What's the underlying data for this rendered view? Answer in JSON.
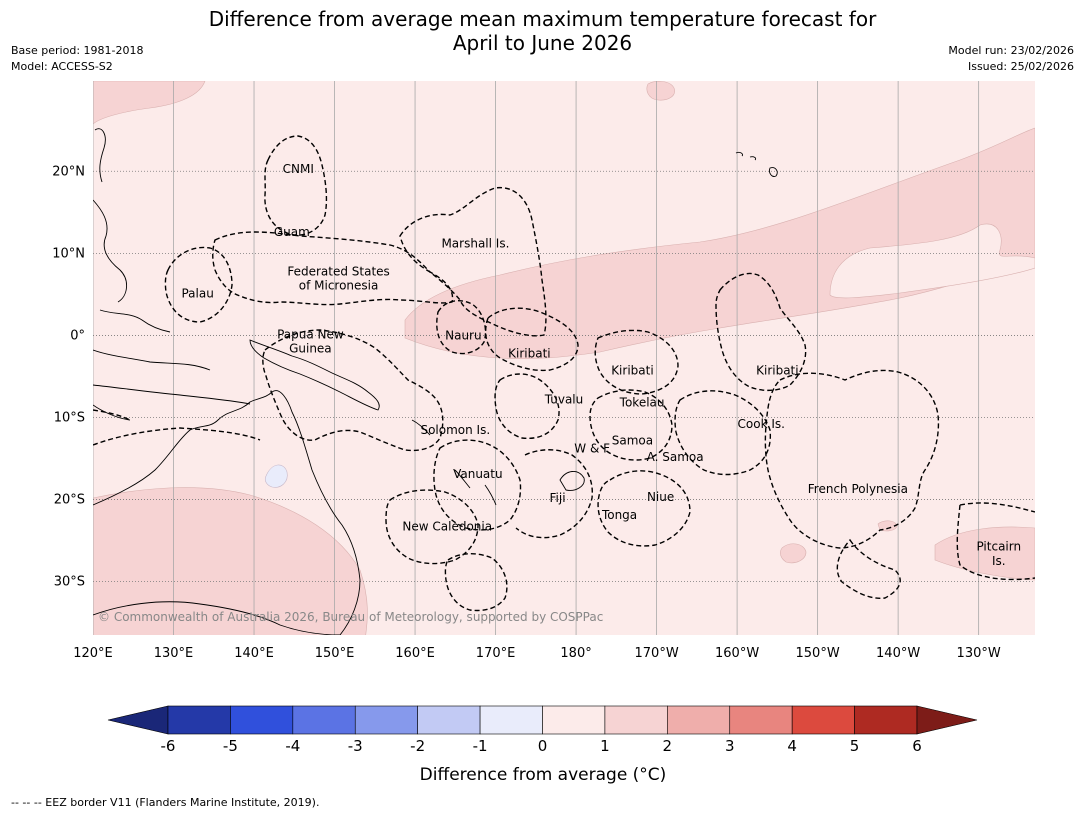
{
  "title": {
    "line1": "Difference from average mean maximum temperature forecast for",
    "line2": "April to June 2026"
  },
  "meta": {
    "base_period": "Base period: 1981-2018",
    "model": "Model: ACCESS-S2",
    "model_run": "Model run: 23/02/2026",
    "issued": "Issued: 25/02/2026"
  },
  "map": {
    "extent": {
      "lon_min": 120,
      "lon_max": 237,
      "lat_min": -36.5,
      "lat_max": 31
    },
    "lon_ticks": [
      {
        "lon": 120,
        "label": "120°E"
      },
      {
        "lon": 130,
        "label": "130°E"
      },
      {
        "lon": 140,
        "label": "140°E"
      },
      {
        "lon": 150,
        "label": "150°E"
      },
      {
        "lon": 160,
        "label": "160°E"
      },
      {
        "lon": 170,
        "label": "170°E"
      },
      {
        "lon": 180,
        "label": "180°"
      },
      {
        "lon": 190,
        "label": "170°W"
      },
      {
        "lon": 200,
        "label": "160°W"
      },
      {
        "lon": 210,
        "label": "150°W"
      },
      {
        "lon": 220,
        "label": "140°W"
      },
      {
        "lon": 230,
        "label": "130°W"
      }
    ],
    "lat_ticks": [
      {
        "lat": 20,
        "label": "20°N"
      },
      {
        "lat": 10,
        "label": "10°N"
      },
      {
        "lat": 0,
        "label": "0°"
      },
      {
        "lat": -10,
        "label": "10°S"
      },
      {
        "lat": -20,
        "label": "20°S"
      },
      {
        "lat": -30,
        "label": "30°S"
      }
    ],
    "background_category": "0 to 1",
    "region_labels": [
      {
        "name": "CNMI",
        "lon": 145.5,
        "lat": 20.3
      },
      {
        "name": "Guam",
        "lon": 144.7,
        "lat": 12.6
      },
      {
        "name": "Marshall Is.",
        "lon": 167.5,
        "lat": 11.2
      },
      {
        "name": "Federated States",
        "lon": 150.5,
        "lat": 7.8
      },
      {
        "name": "of Micronesia",
        "lon": 150.5,
        "lat": 6.1
      },
      {
        "name": "Palau",
        "lon": 133,
        "lat": 5.1
      },
      {
        "name": "Papua New",
        "lon": 147,
        "lat": 0.1
      },
      {
        "name": "Guinea",
        "lon": 147,
        "lat": -1.6
      },
      {
        "name": "Nauru",
        "lon": 166,
        "lat": 0
      },
      {
        "name": "Kiribati",
        "lon": 174.2,
        "lat": -2.2
      },
      {
        "name": "Kiribati",
        "lon": 187,
        "lat": -4.3
      },
      {
        "name": "Kiribati",
        "lon": 205,
        "lat": -4.3
      },
      {
        "name": "Tuvalu",
        "lon": 178.5,
        "lat": -7.8
      },
      {
        "name": "Tokelau",
        "lon": 188.2,
        "lat": -8.2
      },
      {
        "name": "Cook Is.",
        "lon": 203,
        "lat": -10.8
      },
      {
        "name": "Solomon Is.",
        "lon": 165,
        "lat": -11.5
      },
      {
        "name": "Samoa",
        "lon": 187,
        "lat": -12.8
      },
      {
        "name": "W & F",
        "lon": 182,
        "lat": -13.8
      },
      {
        "name": "A. Samoa",
        "lon": 192.3,
        "lat": -14.8
      },
      {
        "name": "Vanuatu",
        "lon": 167.8,
        "lat": -16.9
      },
      {
        "name": "Fiji",
        "lon": 177.7,
        "lat": -19.8
      },
      {
        "name": "Niue",
        "lon": 190.5,
        "lat": -19.7
      },
      {
        "name": "French Polynesia",
        "lon": 215,
        "lat": -18.7
      },
      {
        "name": "Tonga",
        "lon": 185.4,
        "lat": -21.9
      },
      {
        "name": "New Caledonia",
        "lon": 164,
        "lat": -23.3
      },
      {
        "name": "Pitcairn",
        "lon": 232.5,
        "lat": -25.7
      },
      {
        "name": "Is.",
        "lon": 232.5,
        "lat": -27.5
      }
    ],
    "copyright": "© Commonwealth of Australia 2026, Bureau of Meteorology, supported by COSPPac"
  },
  "legend": {
    "ticks": [
      "-6",
      "-5",
      "-4",
      "-3",
      "-2",
      "-1",
      "0",
      "1",
      "2",
      "3",
      "4",
      "5",
      "6"
    ],
    "colors": [
      "#2439a8",
      "#3050dc",
      "#5b73e4",
      "#8699ec",
      "#c2caf4",
      "#e9ecfb",
      "#fcebea",
      "#f6d3d3",
      "#efaeab",
      "#e8857f",
      "#dc4a3e",
      "#ae2a22"
    ],
    "under_color": "#1a2778",
    "over_color": "#7d1c18",
    "label": "Difference from average (°C)"
  },
  "footnote": "--  --  -- EEZ border V11 (Flanders Marine Institute, 2019)."
}
